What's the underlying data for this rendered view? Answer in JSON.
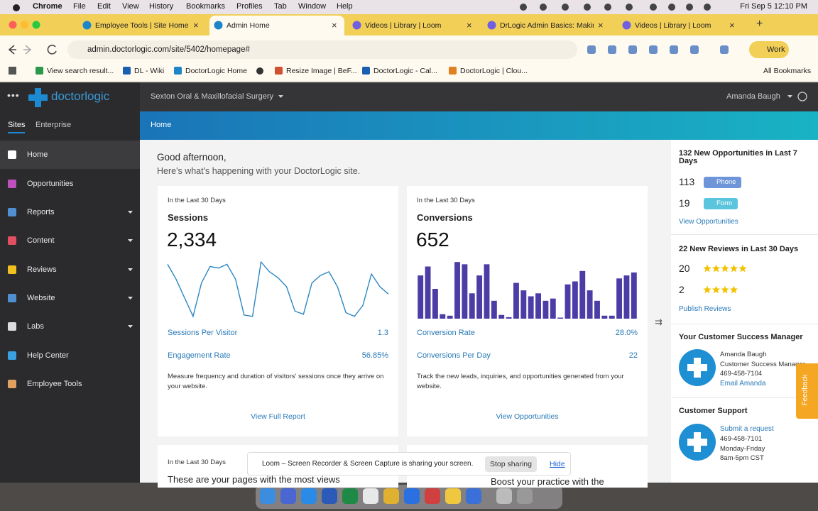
{
  "menubar": {
    "app": "Chrome",
    "items": [
      "File",
      "Edit",
      "View",
      "History",
      "Bookmarks",
      "Profiles",
      "Tab",
      "Window",
      "Help"
    ],
    "clock": "Fri Sep 5  12:10 PM"
  },
  "tabs": [
    "Employee Tools | Site Home",
    "Admin Home",
    "Videos | Library | Loom",
    "DrLogic Admin Basics: Making",
    "Videos | Library | Loom"
  ],
  "active_tab": 1,
  "address": "admin.doctorlogic.com/site/5402/homepage#",
  "profile": "Work",
  "bookmarks": [
    "View search result...",
    "DL - Wiki",
    "DoctorLogic Home",
    "Resize Image | BeF...",
    "DoctorLogic - Cal...",
    "DoctorLogic | Clou..."
  ],
  "all_bookmarks": "All Bookmarks",
  "app_header": {
    "logo": "doctorlogic",
    "practice": "Sexton Oral & Maxillofacial Surgery",
    "user": "Amanda Baugh"
  },
  "sidebar": {
    "tabs": [
      "Sites",
      "Enterprise"
    ],
    "active": 0,
    "items": [
      {
        "label": "Home",
        "expandable": false
      },
      {
        "label": "Opportunities",
        "expandable": false
      },
      {
        "label": "Reports",
        "expandable": true
      },
      {
        "label": "Content",
        "expandable": true
      },
      {
        "label": "Reviews",
        "expandable": true
      },
      {
        "label": "Website",
        "expandable": true
      },
      {
        "label": "Labs",
        "expandable": true
      },
      {
        "label": "Help Center",
        "expandable": false
      },
      {
        "label": "Employee Tools",
        "expandable": false
      }
    ]
  },
  "breadcrumb": "Home",
  "greeting": "Good afternoon,",
  "subgreeting": "Here's what's happening with your DoctorLogic site.",
  "cards": [
    {
      "period": "In the Last 30 Days",
      "title": "Sessions",
      "total": "2,334",
      "chart": {
        "type": "line",
        "color": "#2b86c2",
        "ylim": [
          0,
          80
        ],
        "values": [
          73,
          53,
          28,
          3,
          48,
          70,
          68,
          73,
          53,
          5,
          3,
          76,
          63,
          55,
          43,
          10,
          6,
          48,
          58,
          63,
          43,
          8,
          3,
          18,
          60,
          43,
          33
        ]
      },
      "metrics": [
        {
          "label": "Sessions Per Visitor",
          "value": "1.3"
        },
        {
          "label": "Engagement Rate",
          "value": "56.85%"
        }
      ],
      "description": "Measure frequency and duration of visitors' sessions once they arrive on your website.",
      "link": "View Full Report"
    },
    {
      "period": "In the Last 30 Days",
      "title": "Conversions",
      "total": "652",
      "chart": {
        "type": "bar",
        "color": "#4b3ca6",
        "ylim": [
          0,
          80
        ],
        "values": [
          58,
          70,
          40,
          6,
          4,
          76,
          73,
          34,
          58,
          73,
          24,
          5,
          2,
          48,
          38,
          30,
          34,
          24,
          27,
          0,
          46,
          50,
          64,
          38,
          24,
          4,
          4,
          54,
          58,
          62
        ]
      },
      "metrics": [
        {
          "label": "Conversion Rate",
          "value": "28.0%"
        },
        {
          "label": "Conversions Per Day",
          "value": "22"
        }
      ],
      "description": "Track the new leads, inquiries, and opportunities generated from your website.",
      "link": "View Opportunities"
    }
  ],
  "lower_cards": [
    {
      "period": "In the Last 30 Days",
      "title": "These are your pages with the most views"
    },
    {
      "title": "Boost your practice with the"
    }
  ],
  "right_panel": {
    "opportunities": {
      "title": "132 New Opportunities in Last 7 Days",
      "rows": [
        {
          "count": "113",
          "badge": "Phone"
        },
        {
          "count": "19",
          "badge": "Form"
        }
      ],
      "link": "View Opportunities"
    },
    "reviews": {
      "title": "22 New Reviews in Last 30 Days",
      "rows": [
        {
          "count": "20",
          "stars": 5
        },
        {
          "count": "2",
          "stars": 4
        }
      ],
      "link": "Publish Reviews"
    },
    "manager": {
      "title": "Your Customer Success Manager",
      "lines": [
        "Amanda Baugh",
        "Customer Success Manager",
        "469-458-7104"
      ],
      "link": "Email Amanda"
    },
    "support": {
      "title": "Customer Support",
      "link": "Submit a request",
      "lines": [
        "469-458-7101",
        "Monday-Friday",
        "8am-5pm CST"
      ]
    },
    "feedback": "Feedback"
  },
  "loom": {
    "message": "Loom – Screen Recorder & Screen Capture is sharing your screen.",
    "stop": "Stop sharing",
    "hide": "Hide"
  }
}
